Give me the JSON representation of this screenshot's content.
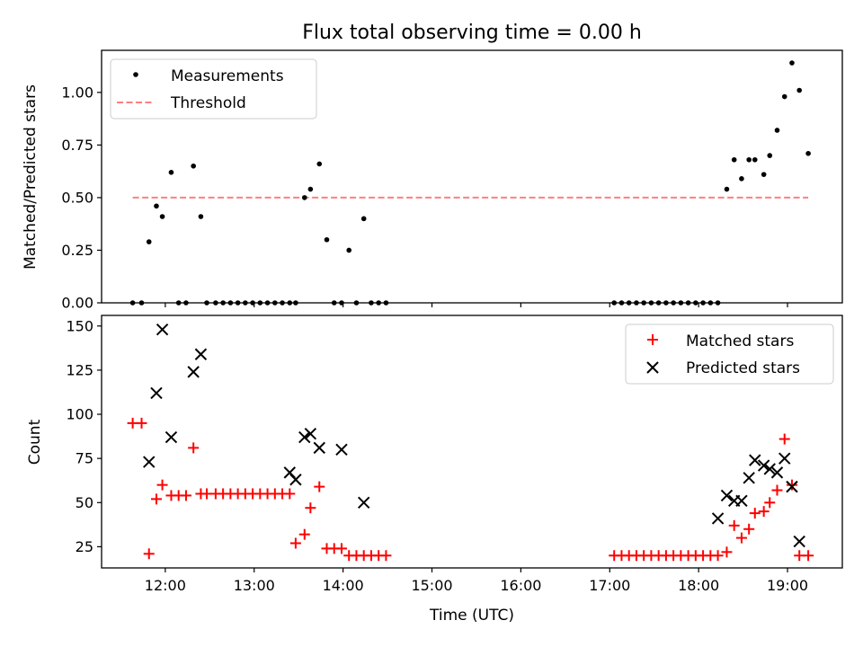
{
  "chart_data": {
    "title": "Flux total observing time = 0.00 h",
    "xlabel": "Time (UTC)",
    "x_format": "HH:MM",
    "xlim": [
      "11:17",
      "19:37"
    ],
    "xticks": [
      "12:00",
      "13:00",
      "14:00",
      "15:00",
      "16:00",
      "17:00",
      "18:00",
      "19:00"
    ],
    "colors": {
      "measurements": "#000000",
      "threshold": "#ff7f7f",
      "matched": "#ff0000",
      "predicted": "#000000"
    },
    "top_panel": {
      "type": "scatter",
      "ylabel": "Matched/Predicted stars",
      "ylim": [
        0,
        1.2
      ],
      "yticks": [
        "0.00",
        "0.25",
        "0.50",
        "0.75",
        "1.00"
      ],
      "legend_position": "upper-left",
      "series": [
        {
          "name": "Measurements",
          "x": [
            "11:38",
            "11:44",
            "11:49",
            "11:54",
            "11:58",
            "12:04",
            "12:09",
            "12:14",
            "12:19",
            "12:24",
            "12:28",
            "12:34",
            "12:39",
            "12:44",
            "12:49",
            "12:54",
            "12:59",
            "13:04",
            "13:09",
            "13:14",
            "13:19",
            "13:24",
            "13:28",
            "13:34",
            "13:38",
            "13:44",
            "13:49",
            "13:54",
            "13:59",
            "14:04",
            "14:09",
            "14:14",
            "14:19",
            "14:24",
            "14:29",
            "17:03",
            "17:08",
            "17:13",
            "17:18",
            "17:23",
            "17:28",
            "17:33",
            "17:38",
            "17:43",
            "17:48",
            "17:53",
            "17:58",
            "18:03",
            "18:08",
            "18:13",
            "18:19",
            "18:24",
            "18:29",
            "18:34",
            "18:38",
            "18:44",
            "18:48",
            "18:53",
            "18:58",
            "19:03",
            "19:08",
            "19:14"
          ],
          "y": [
            0,
            0,
            0.29,
            0.46,
            0.41,
            0.62,
            0,
            0,
            0.65,
            0.41,
            0,
            0,
            0,
            0,
            0,
            0,
            0,
            0,
            0,
            0,
            0,
            0,
            0,
            0.5,
            0.54,
            0.66,
            0.3,
            0,
            0,
            0.25,
            0,
            0.4,
            0,
            0,
            0,
            0,
            0,
            0,
            0,
            0,
            0,
            0,
            0,
            0,
            0,
            0,
            0,
            0,
            0,
            0,
            0.54,
            0.68,
            0.59,
            0.68,
            0.68,
            0.61,
            0.7,
            0.82,
            0.98,
            1.14,
            1.01,
            0.71
          ]
        },
        {
          "name": "Threshold",
          "style": "dashed",
          "x": [
            "11:38",
            "19:14"
          ],
          "y": [
            0.5,
            0.5
          ]
        }
      ]
    },
    "bottom_panel": {
      "type": "scatter",
      "ylabel": "Count",
      "ylim": [
        13,
        156
      ],
      "yticks": [
        "25",
        "50",
        "75",
        "100",
        "125",
        "150"
      ],
      "legend_position": "upper-right",
      "series": [
        {
          "name": "Matched stars",
          "marker": "+",
          "x": [
            "11:38",
            "11:44",
            "11:49",
            "11:54",
            "11:58",
            "12:04",
            "12:09",
            "12:14",
            "12:19",
            "12:24",
            "12:28",
            "12:34",
            "12:39",
            "12:44",
            "12:49",
            "12:54",
            "12:59",
            "13:04",
            "13:09",
            "13:14",
            "13:19",
            "13:24",
            "13:28",
            "13:34",
            "13:38",
            "13:44",
            "13:49",
            "13:54",
            "13:59",
            "14:04",
            "14:09",
            "14:14",
            "14:19",
            "14:24",
            "14:29",
            "17:03",
            "17:08",
            "17:13",
            "17:18",
            "17:23",
            "17:28",
            "17:33",
            "17:38",
            "17:43",
            "17:48",
            "17:53",
            "17:58",
            "18:03",
            "18:08",
            "18:13",
            "18:19",
            "18:24",
            "18:29",
            "18:34",
            "18:38",
            "18:44",
            "18:48",
            "18:53",
            "18:58",
            "19:03",
            "19:08",
            "19:14"
          ],
          "y": [
            95,
            95,
            21,
            52,
            60,
            54,
            54,
            54,
            81,
            55,
            55,
            55,
            55,
            55,
            55,
            55,
            55,
            55,
            55,
            55,
            55,
            55,
            27,
            32,
            47,
            59,
            24,
            24,
            24,
            20,
            20,
            20,
            20,
            20,
            20,
            20,
            20,
            20,
            20,
            20,
            20,
            20,
            20,
            20,
            20,
            20,
            20,
            20,
            20,
            20,
            22,
            37,
            30,
            35,
            44,
            45,
            50,
            57,
            86,
            60,
            20,
            20
          ]
        },
        {
          "name": "Predicted stars",
          "marker": "x",
          "x": [
            "11:49",
            "11:54",
            "11:58",
            "12:04",
            "12:19",
            "12:24",
            "13:24",
            "13:28",
            "13:34",
            "13:38",
            "13:44",
            "13:59",
            "14:14",
            "18:13",
            "18:19",
            "18:24",
            "18:29",
            "18:34",
            "18:38",
            "18:44",
            "18:48",
            "18:53",
            "18:58",
            "19:03",
            "19:08"
          ],
          "y": [
            73,
            112,
            148,
            87,
            124,
            134,
            67,
            63,
            87,
            89,
            81,
            80,
            50,
            41,
            54,
            51,
            51,
            64,
            74,
            71,
            69,
            67,
            75,
            59,
            28
          ]
        }
      ]
    }
  }
}
